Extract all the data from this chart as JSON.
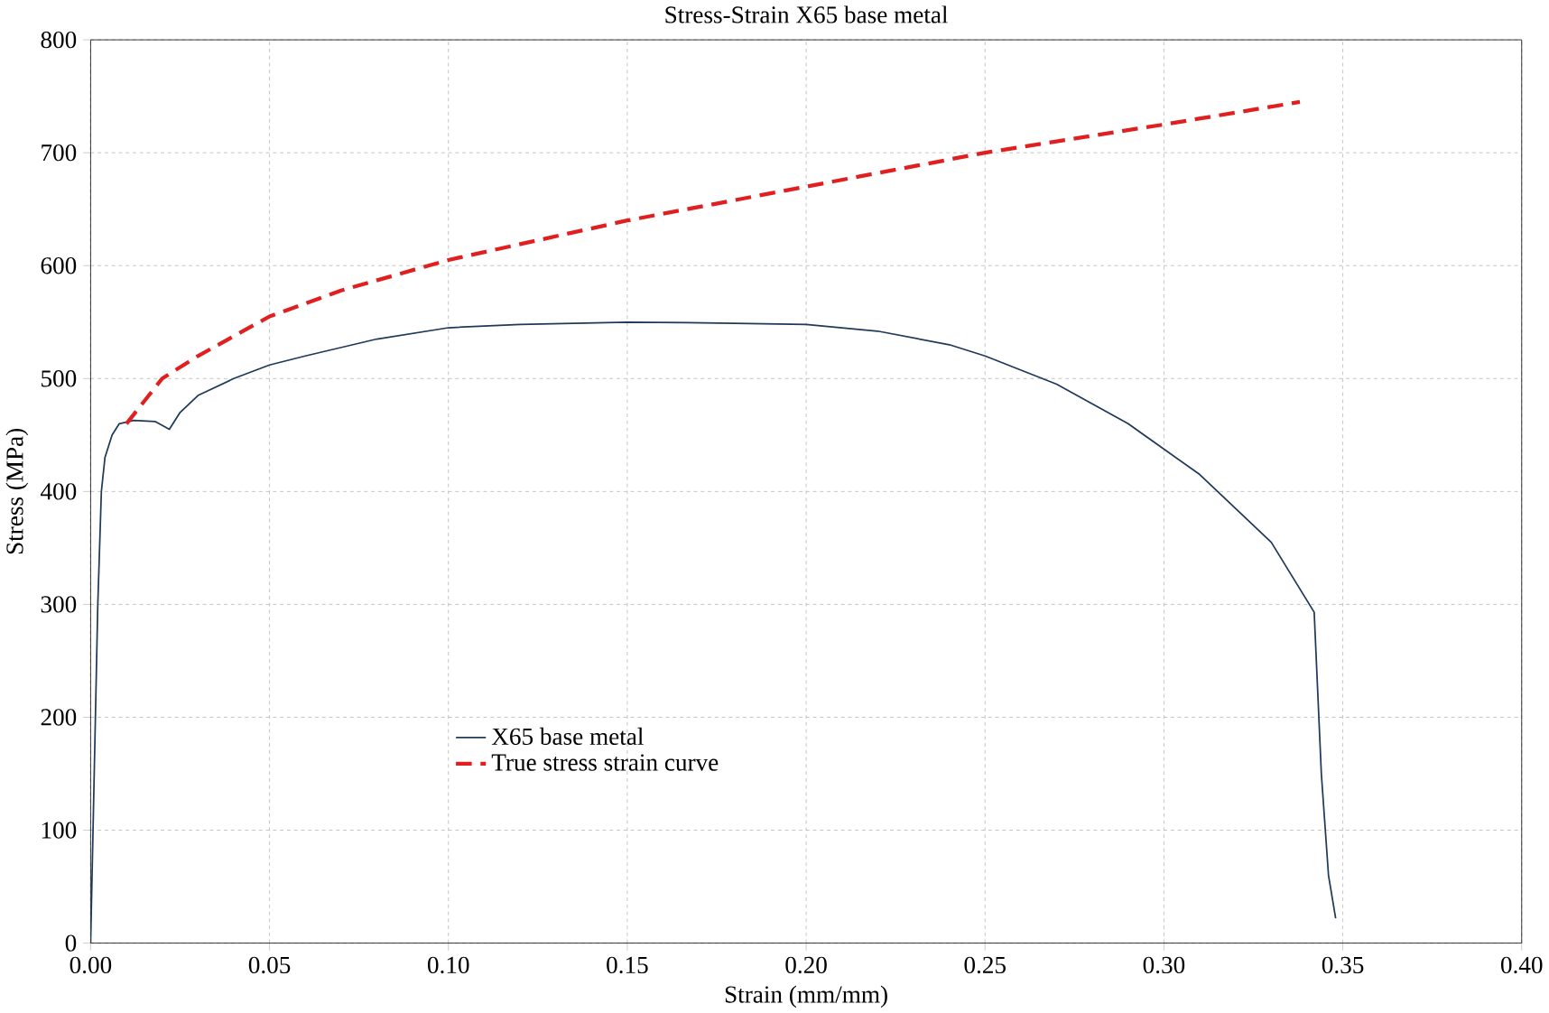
{
  "chart_data": {
    "type": "line",
    "title": "Stress-Strain X65 base metal",
    "xlabel": "Strain (mm/mm)",
    "ylabel": "Stress (MPa)",
    "xlim": [
      0,
      0.4
    ],
    "ylim": [
      0,
      800
    ],
    "xticks": [
      {
        "value": 0,
        "label": "0.00"
      },
      {
        "value": 0.05,
        "label": "0.05"
      },
      {
        "value": 0.1,
        "label": "0.10"
      },
      {
        "value": 0.15,
        "label": "0.15"
      },
      {
        "value": 0.2,
        "label": "0.20"
      },
      {
        "value": 0.25,
        "label": "0.25"
      },
      {
        "value": 0.3,
        "label": "0.30"
      },
      {
        "value": 0.35,
        "label": "0.35"
      },
      {
        "value": 0.4,
        "label": "0.40"
      }
    ],
    "yticks": [
      0,
      100,
      200,
      300,
      400,
      500,
      600,
      700,
      800
    ],
    "grid": true,
    "legend": "center",
    "series": [
      {
        "name": "X65 base metal",
        "color": "#1f3a5a",
        "line_style": "solid",
        "x": [
          0,
          0.001,
          0.002,
          0.003,
          0.004,
          0.006,
          0.008,
          0.012,
          0.018,
          0.022,
          0.025,
          0.03,
          0.04,
          0.05,
          0.06,
          0.08,
          0.1,
          0.12,
          0.15,
          0.18,
          0.2,
          0.22,
          0.24,
          0.25,
          0.27,
          0.29,
          0.31,
          0.33,
          0.342,
          0.344,
          0.346,
          0.348
        ],
        "values": [
          0,
          150,
          300,
          400,
          430,
          450,
          460,
          463,
          462,
          455,
          470,
          485,
          500,
          512,
          520,
          535,
          545,
          548,
          550,
          549,
          548,
          542,
          530,
          520,
          495,
          460,
          415,
          355,
          293,
          150,
          60,
          22
        ]
      },
      {
        "name": "True stress strain curve",
        "color": "#e02020",
        "line_style": "dashed",
        "x": [
          0.01,
          0.02,
          0.03,
          0.05,
          0.07,
          0.1,
          0.15,
          0.2,
          0.25,
          0.3,
          0.338
        ],
        "values": [
          460,
          500,
          520,
          555,
          578,
          605,
          640,
          670,
          700,
          725,
          745
        ]
      }
    ]
  }
}
